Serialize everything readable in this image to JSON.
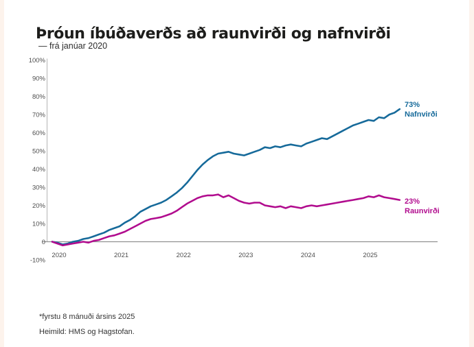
{
  "page": {
    "title": "Þróun íbúðaverðs að raunvirði og nafnvirði",
    "subtitle": "— frá janúar 2020",
    "footnote": "*fyrstu 8 mánuði ársins 2025",
    "source": "Heimild: HMS og Hagstofan."
  },
  "colors": {
    "nominal_line": "#166a9a",
    "real_line": "#b10c8e",
    "title_text": "#1d1d1b",
    "axis_text": "#4d4d4d",
    "zero_line": "#909090",
    "axis_line": "#b5b5b5",
    "page_edge": "#fdf3ec"
  },
  "chart_data": {
    "type": "line",
    "title": "Þróun íbúðaverðs að raunvirði og nafnvirði",
    "subtitle": "— frá janúar 2020",
    "x_unit": "month",
    "x_start": "2020-01",
    "x_end": "2025-08",
    "xlim_months": [
      0,
      67
    ],
    "ylim": [
      -10,
      100
    ],
    "grid": "zero-line-only",
    "legend": "end-of-line-labels",
    "x_tick_labels": [
      "2020",
      "2021",
      "2022",
      "2023",
      "2024",
      "2025"
    ],
    "x_tick_month_index": [
      0,
      12,
      24,
      36,
      48,
      60
    ],
    "y_tick_labels": [
      "100%",
      "90%",
      "80%",
      "70%",
      "60%",
      "50%",
      "40%",
      "30%",
      "20%",
      "10%",
      "0",
      "-10%"
    ],
    "y_tick_values": [
      100,
      90,
      80,
      70,
      60,
      50,
      40,
      30,
      20,
      10,
      0,
      -10
    ],
    "series": [
      {
        "name": "Nafnvirði",
        "end_label_value": "73%",
        "color": "#166a9a",
        "values": [
          0,
          -0.5,
          -1.5,
          -1,
          0,
          0.5,
          1.5,
          2,
          3,
          4,
          5,
          6.5,
          7.5,
          8.5,
          10.5,
          12,
          14,
          16.5,
          18,
          19.5,
          20.5,
          21.5,
          23,
          25,
          27,
          29.5,
          32.5,
          36,
          39.5,
          42.5,
          45,
          47,
          48.5,
          49,
          49.5,
          48.5,
          48,
          47.5,
          48.5,
          49.5,
          50.5,
          52,
          51.5,
          52.5,
          52,
          53,
          53.5,
          53,
          52.5,
          54,
          55,
          56,
          57,
          56.5,
          58,
          59.5,
          61,
          62.5,
          64,
          65,
          66,
          67,
          66.5,
          68.5,
          68,
          70,
          71,
          73
        ]
      },
      {
        "name": "Raunvirði",
        "end_label_value": "23%",
        "color": "#b10c8e",
        "values": [
          0,
          -1,
          -2,
          -1.5,
          -1,
          -0.5,
          0,
          -0.5,
          0.5,
          1,
          2,
          3,
          3.5,
          4.5,
          5.5,
          7,
          8.5,
          10,
          11.5,
          12.5,
          13,
          13.5,
          14.5,
          15.5,
          17,
          19,
          21,
          22.5,
          24,
          25,
          25.5,
          25.5,
          26,
          24.5,
          25.5,
          24,
          22.5,
          21.5,
          21,
          21.5,
          21.5,
          20,
          19.5,
          19,
          19.5,
          18.5,
          19.5,
          19,
          18.5,
          19.5,
          20,
          19.5,
          20,
          20.5,
          21,
          21.5,
          22,
          22.5,
          23,
          23.5,
          24,
          25,
          24.5,
          25.5,
          24.5,
          24,
          23.5,
          23
        ]
      }
    ]
  }
}
